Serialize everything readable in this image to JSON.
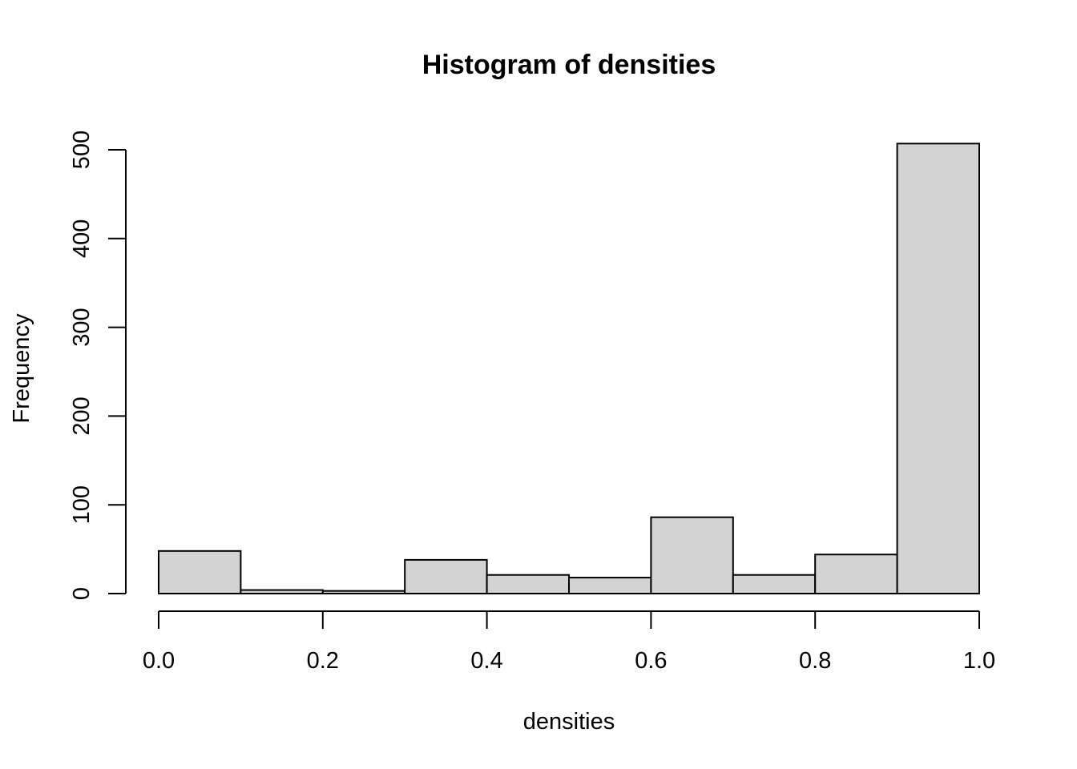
{
  "chart_data": {
    "type": "bar",
    "title": "Histogram of densities",
    "xlabel": "densities",
    "ylabel": "Frequency",
    "bins": [
      {
        "start": 0.0,
        "end": 0.1,
        "count": 48
      },
      {
        "start": 0.1,
        "end": 0.2,
        "count": 4
      },
      {
        "start": 0.2,
        "end": 0.3,
        "count": 3
      },
      {
        "start": 0.3,
        "end": 0.4,
        "count": 38
      },
      {
        "start": 0.4,
        "end": 0.5,
        "count": 21
      },
      {
        "start": 0.5,
        "end": 0.6,
        "count": 18
      },
      {
        "start": 0.6,
        "end": 0.7,
        "count": 86
      },
      {
        "start": 0.7,
        "end": 0.8,
        "count": 21
      },
      {
        "start": 0.8,
        "end": 0.9,
        "count": 44
      },
      {
        "start": 0.9,
        "end": 1.0,
        "count": 507
      }
    ],
    "xticks": [
      "0.0",
      "0.2",
      "0.4",
      "0.6",
      "0.8",
      "1.0"
    ],
    "xtick_values": [
      0.0,
      0.2,
      0.4,
      0.6,
      0.8,
      1.0
    ],
    "yticks": [
      "0",
      "100",
      "200",
      "300",
      "400",
      "500"
    ],
    "ytick_values": [
      0,
      100,
      200,
      300,
      400,
      500
    ],
    "xlim": [
      0,
      1
    ],
    "ylim": [
      0,
      500
    ],
    "bar_fill": "#d3d3d3",
    "grid": false,
    "legend": "none"
  }
}
